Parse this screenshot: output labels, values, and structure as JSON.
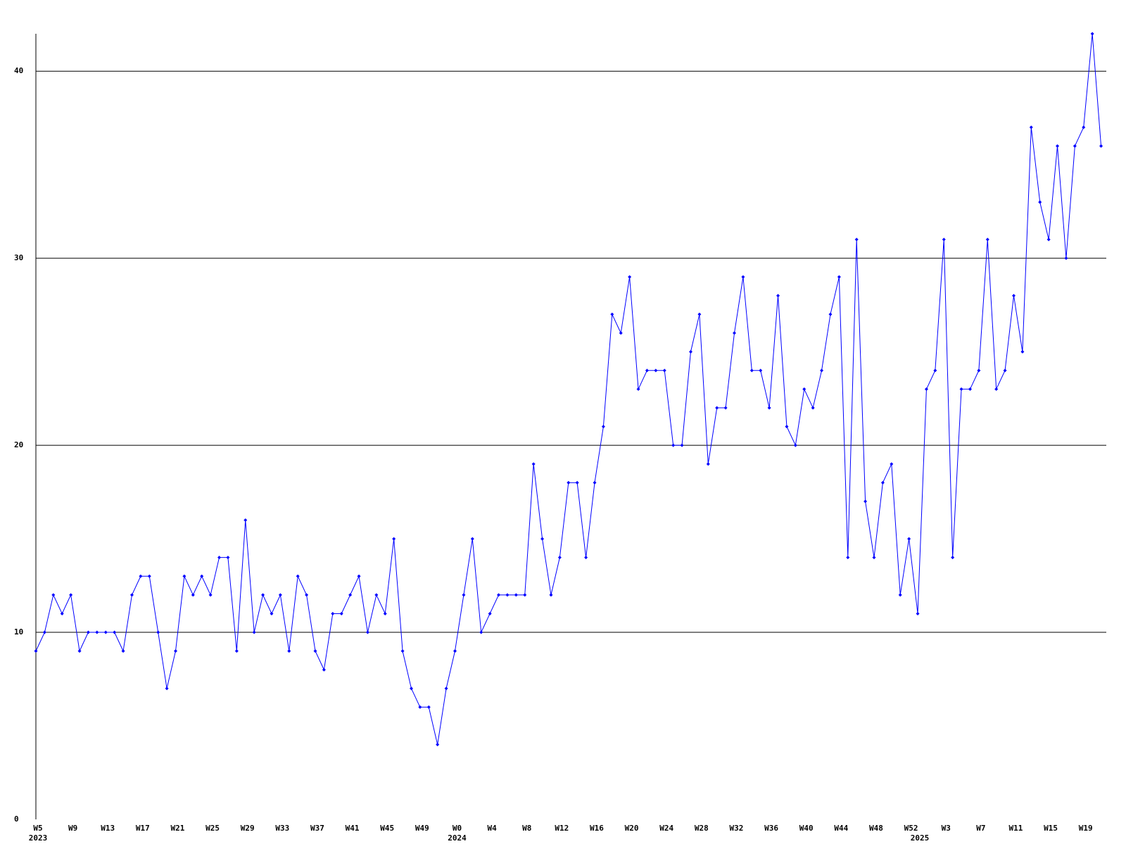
{
  "chart_data": {
    "type": "line",
    "categories": [
      "W5",
      null,
      null,
      null,
      "W9",
      null,
      null,
      null,
      "W13",
      null,
      null,
      null,
      "W17",
      null,
      null,
      null,
      "W21",
      null,
      null,
      null,
      "W25",
      null,
      null,
      null,
      "W29",
      null,
      null,
      null,
      "W33",
      null,
      null,
      null,
      "W37",
      null,
      null,
      null,
      "W41",
      null,
      null,
      null,
      "W45",
      null,
      null,
      null,
      "W49",
      null,
      null,
      null,
      "W0",
      null,
      null,
      null,
      "W4",
      null,
      null,
      null,
      "W8",
      null,
      null,
      null,
      "W12",
      null,
      null,
      null,
      "W16",
      null,
      null,
      null,
      "W20",
      null,
      null,
      null,
      "W24",
      null,
      null,
      null,
      "W28",
      null,
      null,
      null,
      "W32",
      null,
      null,
      null,
      "W36",
      null,
      null,
      null,
      "W40",
      null,
      null,
      null,
      "W44",
      null,
      null,
      null,
      "W48",
      null,
      null,
      null,
      "W52",
      null,
      null,
      null,
      "W3",
      null,
      null,
      null,
      "W7",
      null,
      null,
      null,
      "W11",
      null,
      null,
      null,
      "W15",
      null,
      null,
      null,
      "W19",
      null,
      null
    ],
    "category_years": [
      "2023",
      null,
      null,
      null,
      null,
      null,
      null,
      null,
      null,
      null,
      null,
      null,
      null,
      null,
      null,
      null,
      null,
      null,
      null,
      null,
      null,
      null,
      null,
      null,
      null,
      null,
      null,
      null,
      null,
      null,
      null,
      null,
      null,
      null,
      null,
      null,
      null,
      null,
      null,
      null,
      null,
      null,
      null,
      null,
      null,
      null,
      null,
      null,
      "2024",
      null,
      null,
      null,
      null,
      null,
      null,
      null,
      null,
      null,
      null,
      null,
      null,
      null,
      null,
      null,
      null,
      null,
      null,
      null,
      null,
      null,
      null,
      null,
      null,
      null,
      null,
      null,
      null,
      null,
      null,
      null,
      null,
      null,
      null,
      null,
      null,
      null,
      null,
      null,
      null,
      null,
      null,
      null,
      null,
      null,
      null,
      null,
      null,
      null,
      null,
      null,
      null,
      "2025",
      null,
      null,
      null,
      null,
      null,
      null,
      null,
      null,
      null,
      null,
      null,
      null,
      null,
      null,
      null,
      null,
      null,
      null,
      null,
      null
    ],
    "series": [
      {
        "color": "#0000ff",
        "values": [
          9,
          10,
          12,
          11,
          12,
          9,
          10,
          10,
          10,
          10,
          9,
          12,
          13,
          13,
          10,
          7,
          9,
          13,
          12,
          13,
          12,
          14,
          14,
          9,
          16,
          10,
          12,
          11,
          12,
          9,
          13,
          12,
          9,
          8,
          11,
          11,
          12,
          13,
          10,
          12,
          11,
          15,
          9,
          7,
          6,
          6,
          4,
          7,
          9,
          12,
          15,
          10,
          11,
          12,
          12,
          12,
          12,
          19,
          15,
          12,
          14,
          18,
          18,
          14,
          18,
          21,
          27,
          26,
          29,
          23,
          24,
          24,
          24,
          20,
          20,
          25,
          27,
          19,
          22,
          22,
          26,
          29,
          24,
          24,
          22,
          28,
          21,
          20,
          23,
          22,
          24,
          27,
          29,
          14,
          31,
          17,
          14,
          18,
          19,
          12,
          15,
          11,
          23,
          24,
          31,
          14,
          23,
          23,
          24,
          31,
          23,
          24,
          28,
          25,
          37,
          33,
          31,
          36,
          30,
          36,
          37,
          42,
          36
        ]
      }
    ],
    "ylim": [
      0,
      42
    ],
    "yticks": [
      0,
      10,
      20,
      30,
      40
    ],
    "grid": true
  }
}
